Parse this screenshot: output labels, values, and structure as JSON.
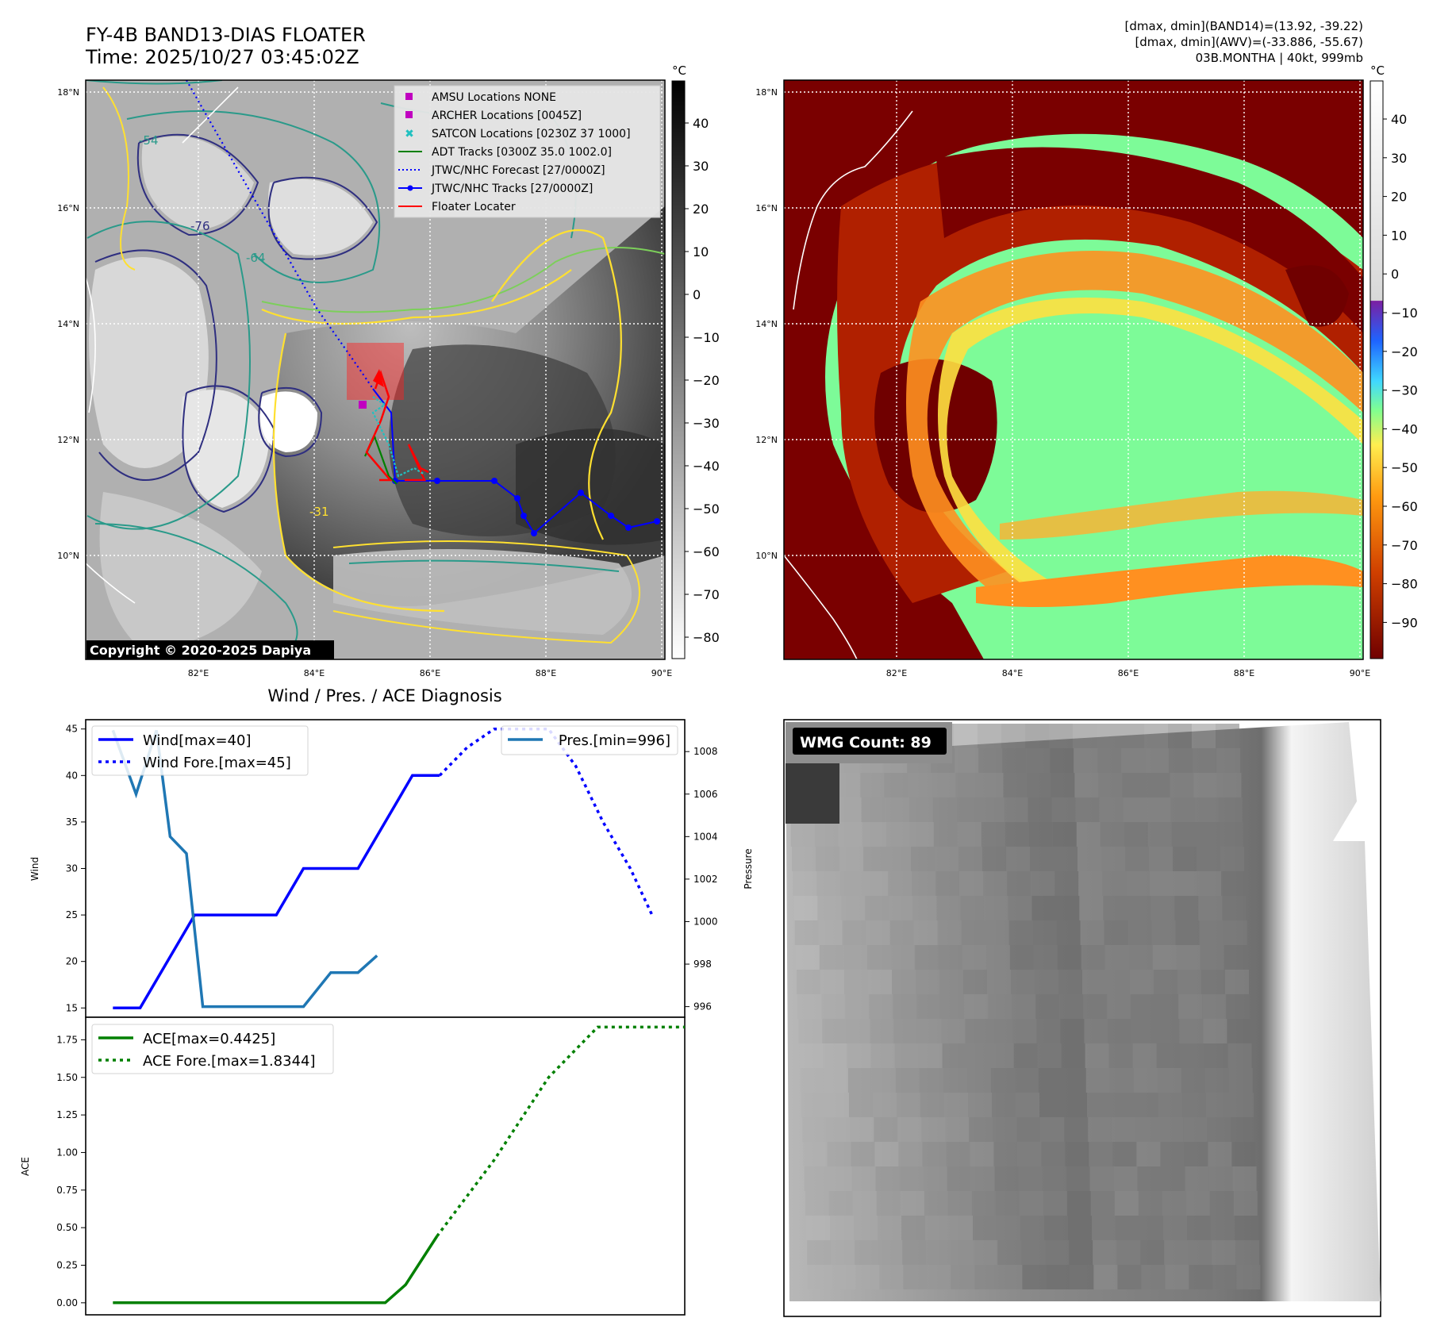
{
  "header": {
    "title": "FY-4B BAND13-DIAS FLOATER",
    "time": "Time: 2025/10/27 03:45:02Z",
    "dmax_band14": "[dmax, dmin](BAND14)=(13.92, -39.22)",
    "dmax_awv": "[dmax, dmin](AWV)=(-33.886, -55.67)",
    "storm": "03B.MONTHA | 40kt, 999mb"
  },
  "map": {
    "lat_labels": [
      "18°N",
      "16°N",
      "14°N",
      "12°N",
      "10°N"
    ],
    "lon_labels": [
      "82°E",
      "84°E",
      "86°E",
      "88°E",
      "90°E"
    ],
    "copyright": "Copyright © 2020-2025 Dapiya",
    "contour_labels": [
      "-54",
      "-76",
      "-64",
      "-31"
    ],
    "legend": [
      {
        "label": "AMSU Locations NONE",
        "color": "#c000c0",
        "marker": "square"
      },
      {
        "label": "ARCHER Locations [0045Z]",
        "color": "#c000c0",
        "marker": "square"
      },
      {
        "label": "SATCON Locations [0230Z 37 1000]",
        "color": "#20c0c0",
        "marker": "x"
      },
      {
        "label": "ADT Tracks [0300Z 35.0 1002.0]",
        "color": "#008000",
        "marker": "line"
      },
      {
        "label": "JTWC/NHC Forecast [27/0000Z]",
        "color": "#0000ff",
        "marker": "dotted"
      },
      {
        "label": "JTWC/NHC Tracks [27/0000Z]",
        "color": "#0000ff",
        "marker": "line-dot"
      },
      {
        "label": "Floater Locater",
        "color": "#ff0000",
        "marker": "line"
      }
    ]
  },
  "colorbar_ir": {
    "unit": "°C",
    "ticks": [
      "40",
      "30",
      "20",
      "10",
      "0",
      "−10",
      "−20",
      "−30",
      "−40",
      "−50",
      "−60",
      "−70",
      "−80"
    ]
  },
  "colorbar_wv": {
    "unit": "°C",
    "ticks": [
      "40",
      "30",
      "20",
      "10",
      "0",
      "−10",
      "−20",
      "−30",
      "−40",
      "−50",
      "−60",
      "−70",
      "−80",
      "−90"
    ]
  },
  "wmg": {
    "label": "WMG Count: 89"
  },
  "chart_data": [
    {
      "type": "line",
      "title": "Wind / Pres. / ACE Diagnosis",
      "ylabel": "Wind",
      "y2label": "Pressure",
      "ylim": [
        14,
        46
      ],
      "y2lim": [
        995.5,
        1009.5
      ],
      "yticks": [
        "15",
        "20",
        "25",
        "30",
        "35",
        "40",
        "45"
      ],
      "y2ticks": [
        "996",
        "998",
        "1000",
        "1002",
        "1004",
        "1006",
        "1008"
      ],
      "legend_left": [
        "Wind[max=40]",
        "Wind Fore.[max=45]"
      ],
      "legend_right": [
        "Pres.[min=996]"
      ],
      "series": [
        {
          "name": "Wind[max=40]",
          "color": "#0000ff",
          "style": "solid",
          "axis": "left",
          "x": [
            0,
            1,
            3,
            6,
            7,
            9,
            10,
            11,
            12
          ],
          "y": [
            15,
            15,
            25,
            25,
            30,
            30,
            35,
            40,
            40
          ]
        },
        {
          "name": "Wind Fore.[max=45]",
          "color": "#0000ff",
          "style": "dotted",
          "axis": "left",
          "x": [
            12,
            13,
            14,
            15,
            16,
            17,
            17.5,
            18,
            19,
            19.8
          ],
          "y": [
            40,
            43,
            45,
            45,
            45,
            41,
            38,
            35,
            30,
            25
          ]
        },
        {
          "name": "Pres.[min=996]",
          "color": "#1f77b4",
          "style": "solid",
          "axis": "left",
          "x": [
            0,
            0.85,
            1.6,
            2.1,
            2.7,
            3.3,
            4.6,
            6,
            7,
            8,
            9,
            9.7
          ],
          "y": [
            1009,
            1006,
            1009,
            1004,
            1003.2,
            996,
            996,
            996,
            996,
            997.6,
            997.6,
            998.4
          ]
        }
      ]
    },
    {
      "type": "line",
      "ylabel": "ACE",
      "ylim": [
        -0.08,
        1.9
      ],
      "yticks": [
        "0.00",
        "0.25",
        "0.50",
        "0.75",
        "1.00",
        "1.25",
        "1.50",
        "1.75"
      ],
      "legend": [
        "ACE[max=0.4425]",
        "ACE Fore.[max=1.8344]"
      ],
      "series": [
        {
          "name": "ACE[max=0.4425]",
          "color": "#008000",
          "style": "solid",
          "x": [
            0,
            1,
            2,
            3,
            4,
            5,
            6,
            7,
            8,
            9,
            10,
            10.75,
            11.9
          ],
          "y": [
            0,
            0,
            0,
            0,
            0,
            0,
            0,
            0,
            0,
            0,
            0,
            0.12,
            0.4425
          ]
        },
        {
          "name": "ACE Fore.[max=1.8344]",
          "color": "#008000",
          "style": "dotted",
          "x": [
            11.9,
            14,
            16,
            17.8,
            19,
            20,
            21
          ],
          "y": [
            0.4425,
            0.95,
            1.5,
            1.8344,
            1.8344,
            1.8344,
            1.8344
          ]
        }
      ]
    }
  ]
}
